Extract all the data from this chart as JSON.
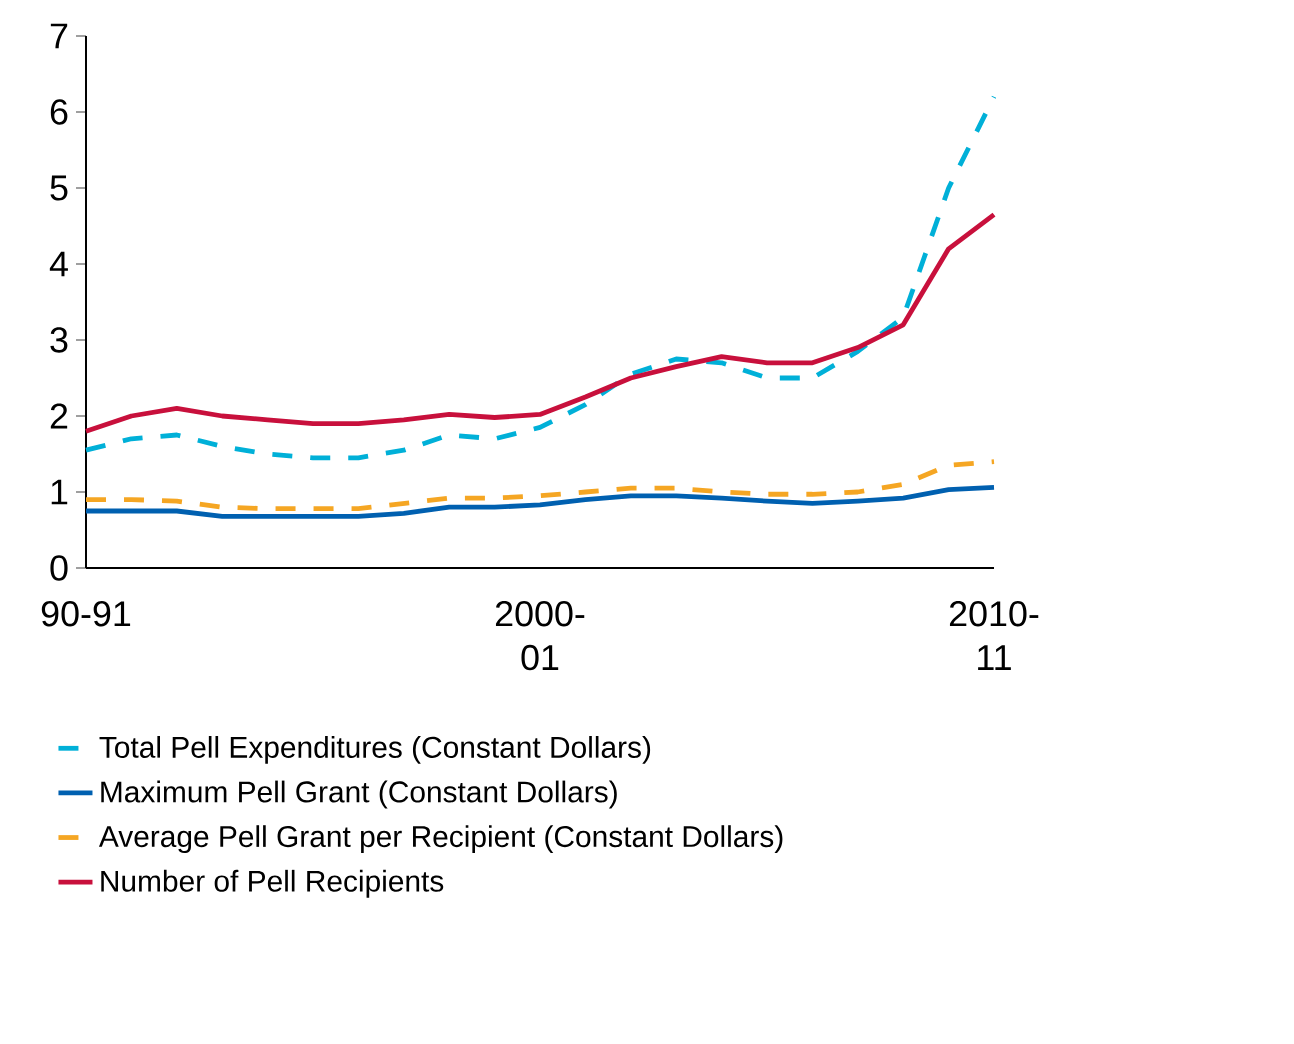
{
  "chart_data": {
    "type": "line",
    "categories": [
      "90-91",
      null,
      null,
      null,
      null,
      null,
      null,
      null,
      null,
      null,
      "2000-01",
      null,
      null,
      null,
      null,
      null,
      null,
      null,
      null,
      null,
      "2010-11"
    ],
    "ylim": [
      0,
      7
    ],
    "yticks": [
      0,
      1,
      2,
      3,
      4,
      5,
      6,
      7
    ],
    "legend": "bottom",
    "grid": false,
    "series": [
      {
        "name": "Total Pell Expenditures (Constant Dollars)",
        "color": "#00b0d8",
        "line_style": "dashed",
        "values": [
          1.55,
          1.7,
          1.75,
          1.6,
          1.5,
          1.45,
          1.45,
          1.55,
          1.75,
          1.7,
          1.85,
          2.15,
          2.55,
          2.75,
          2.7,
          2.5,
          2.5,
          2.85,
          3.3,
          5.0,
          6.2
        ]
      },
      {
        "name": "Maximum Pell Grant (Constant Dollars)",
        "color": "#0060b0",
        "line_style": "solid",
        "values": [
          0.75,
          0.75,
          0.75,
          0.68,
          0.68,
          0.68,
          0.68,
          0.72,
          0.8,
          0.8,
          0.83,
          0.9,
          0.95,
          0.95,
          0.92,
          0.88,
          0.85,
          0.88,
          0.92,
          1.03,
          1.06
        ]
      },
      {
        "name": "Average Pell Grant per Recipient (Constant Dollars)",
        "color": "#f5a623",
        "line_style": "dashed",
        "values": [
          0.9,
          0.9,
          0.88,
          0.8,
          0.78,
          0.78,
          0.78,
          0.85,
          0.92,
          0.92,
          0.95,
          1.0,
          1.05,
          1.05,
          1.0,
          0.97,
          0.97,
          1.0,
          1.1,
          1.35,
          1.4
        ]
      },
      {
        "name": "Number of Pell Recipients",
        "color": "#c8103c",
        "line_style": "solid",
        "values": [
          1.8,
          2.0,
          2.1,
          2.0,
          1.95,
          1.9,
          1.9,
          1.95,
          2.02,
          1.98,
          2.02,
          2.25,
          2.5,
          2.65,
          2.78,
          2.7,
          2.7,
          2.9,
          3.2,
          4.2,
          4.65
        ]
      }
    ]
  }
}
